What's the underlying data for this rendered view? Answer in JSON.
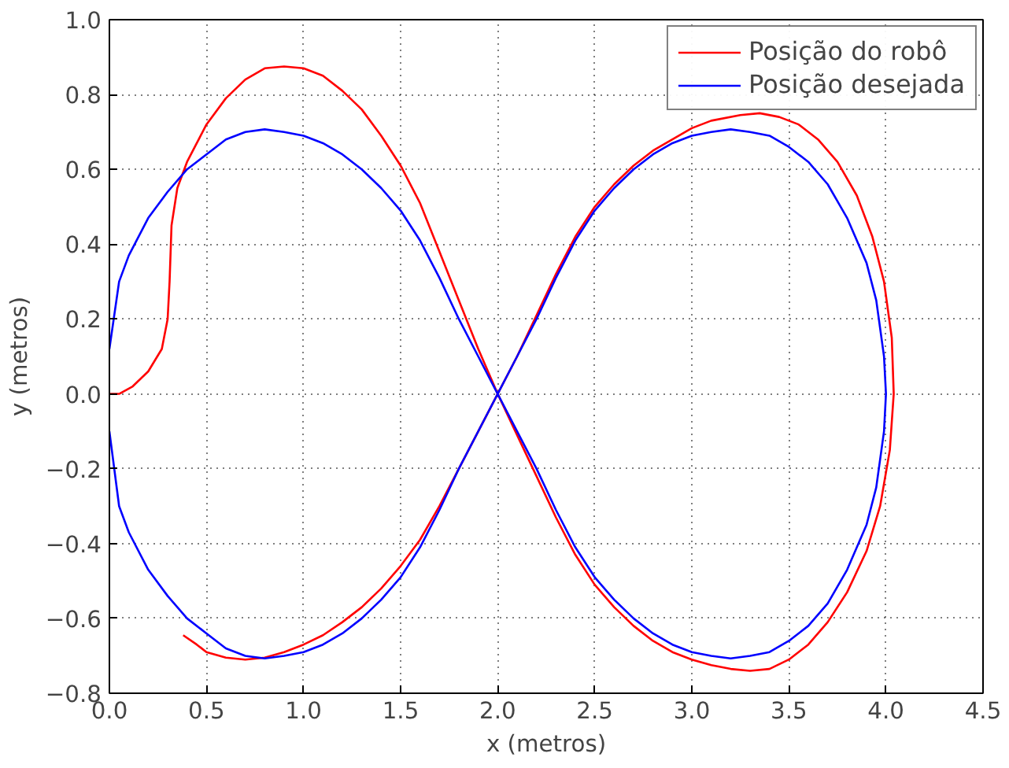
{
  "chart_data": {
    "type": "line",
    "xlabel": "x (metros)",
    "ylabel": "y (metros)",
    "xlim": [
      0,
      4.5
    ],
    "ylim": [
      -0.8,
      1.0
    ],
    "xticks": [
      {
        "value": 0,
        "label": "0.0"
      },
      {
        "value": 0.5,
        "label": "0.5"
      },
      {
        "value": 1,
        "label": "1.0"
      },
      {
        "value": 1.5,
        "label": "1.5"
      },
      {
        "value": 2,
        "label": "2.0"
      },
      {
        "value": 2.5,
        "label": "2.5"
      },
      {
        "value": 3,
        "label": "3.0"
      },
      {
        "value": 3.5,
        "label": "3.5"
      },
      {
        "value": 4,
        "label": "4.0"
      },
      {
        "value": 4.5,
        "label": "4.5"
      }
    ],
    "yticks": [
      {
        "value": -0.8,
        "label": "−0.8"
      },
      {
        "value": -0.6,
        "label": "−0.6"
      },
      {
        "value": -0.4,
        "label": "−0.4"
      },
      {
        "value": -0.2,
        "label": "−0.2"
      },
      {
        "value": 0,
        "label": "0.0"
      },
      {
        "value": 0.2,
        "label": "0.2"
      },
      {
        "value": 0.4,
        "label": "0.4"
      },
      {
        "value": 0.6,
        "label": "0.6"
      },
      {
        "value": 0.8,
        "label": "0.8"
      },
      {
        "value": 1,
        "label": "1.0"
      }
    ],
    "grid": true,
    "legend": "top right",
    "marker": "none",
    "line_style": "solid",
    "series": [
      {
        "name": "Posição do robô",
        "color": "#ff0000",
        "x": [
          0,
          0.05,
          0.12,
          0.2,
          0.27,
          0.3,
          0.31,
          0.32,
          0.35,
          0.4,
          0.5,
          0.6,
          0.7,
          0.8,
          0.9,
          1.0,
          1.1,
          1.2,
          1.3,
          1.4,
          1.5,
          1.6,
          1.7,
          1.8,
          1.9,
          2.0,
          2.1,
          2.2,
          2.3,
          2.4,
          2.5,
          2.6,
          2.7,
          2.8,
          2.9,
          3.0,
          3.1,
          3.2,
          3.3,
          3.4,
          3.5,
          3.6,
          3.7,
          3.8,
          3.9,
          3.97,
          4.02,
          4.04,
          4.03,
          3.99,
          3.93,
          3.85,
          3.75,
          3.65,
          3.55,
          3.45,
          3.35,
          3.25,
          3.1,
          3.0,
          2.9,
          2.8,
          2.7,
          2.6,
          2.5,
          2.4,
          2.3,
          2.2,
          2.1,
          1.98,
          1.9,
          1.8,
          1.7,
          1.6,
          1.5,
          1.4,
          1.3,
          1.2,
          1.1,
          1.0,
          0.9,
          0.8,
          0.7,
          0.6,
          0.5,
          0.45,
          0.38
        ],
        "values": [
          0,
          0,
          0.02,
          0.06,
          0.12,
          0.2,
          0.3,
          0.45,
          0.55,
          0.62,
          0.72,
          0.79,
          0.84,
          0.87,
          0.875,
          0.87,
          0.85,
          0.81,
          0.76,
          0.69,
          0.61,
          0.51,
          0.38,
          0.25,
          0.12,
          0.0,
          -0.11,
          -0.22,
          -0.33,
          -0.43,
          -0.51,
          -0.57,
          -0.62,
          -0.66,
          -0.69,
          -0.71,
          -0.725,
          -0.735,
          -0.74,
          -0.735,
          -0.71,
          -0.67,
          -0.61,
          -0.53,
          -0.42,
          -0.3,
          -0.15,
          0.0,
          0.15,
          0.3,
          0.42,
          0.53,
          0.62,
          0.68,
          0.72,
          0.74,
          0.75,
          0.745,
          0.73,
          0.71,
          0.68,
          0.65,
          0.61,
          0.56,
          0.5,
          0.42,
          0.32,
          0.21,
          0.1,
          -0.02,
          -0.1,
          -0.2,
          -0.3,
          -0.39,
          -0.46,
          -0.52,
          -0.57,
          -0.61,
          -0.645,
          -0.67,
          -0.69,
          -0.705,
          -0.71,
          -0.705,
          -0.69,
          -0.67,
          -0.645
        ]
      },
      {
        "name": "Posição desejada",
        "color": "#0000ff",
        "x": [
          0.0,
          0.05,
          0.1,
          0.2,
          0.3,
          0.4,
          0.5,
          0.6,
          0.7,
          0.8,
          0.9,
          1.0,
          1.1,
          1.2,
          1.3,
          1.4,
          1.5,
          1.6,
          1.7,
          1.8,
          1.9,
          2.0,
          2.1,
          2.2,
          2.3,
          2.4,
          2.5,
          2.6,
          2.7,
          2.8,
          2.9,
          3.0,
          3.1,
          3.2,
          3.3,
          3.4,
          3.5,
          3.6,
          3.7,
          3.8,
          3.9,
          3.95,
          3.99,
          4.0,
          3.99,
          3.95,
          3.9,
          3.8,
          3.7,
          3.6,
          3.5,
          3.4,
          3.3,
          3.2,
          3.1,
          3.0,
          2.9,
          2.8,
          2.7,
          2.6,
          2.5,
          2.4,
          2.3,
          2.2,
          2.1,
          2.0,
          1.9,
          1.8,
          1.7,
          1.6,
          1.5,
          1.4,
          1.3,
          1.2,
          1.1,
          1.0,
          0.9,
          0.8,
          0.7,
          0.6,
          0.5,
          0.4,
          0.3,
          0.2,
          0.1,
          0.05,
          0.0
        ],
        "values": [
          0.12,
          0.3,
          0.37,
          0.47,
          0.54,
          0.6,
          0.64,
          0.68,
          0.7,
          0.707,
          0.7,
          0.69,
          0.67,
          0.64,
          0.6,
          0.55,
          0.49,
          0.41,
          0.31,
          0.2,
          0.1,
          0.0,
          -0.1,
          -0.2,
          -0.31,
          -0.41,
          -0.49,
          -0.55,
          -0.6,
          -0.64,
          -0.67,
          -0.69,
          -0.7,
          -0.707,
          -0.7,
          -0.69,
          -0.66,
          -0.62,
          -0.56,
          -0.47,
          -0.35,
          -0.25,
          -0.1,
          0.0,
          0.1,
          0.25,
          0.35,
          0.47,
          0.56,
          0.62,
          0.66,
          0.69,
          0.7,
          0.707,
          0.7,
          0.69,
          0.67,
          0.64,
          0.6,
          0.55,
          0.49,
          0.41,
          0.31,
          0.2,
          0.1,
          0.0,
          -0.1,
          -0.2,
          -0.31,
          -0.41,
          -0.49,
          -0.55,
          -0.6,
          -0.64,
          -0.67,
          -0.69,
          -0.7,
          -0.707,
          -0.7,
          -0.68,
          -0.64,
          -0.6,
          -0.54,
          -0.47,
          -0.37,
          -0.3,
          -0.1
        ]
      }
    ]
  }
}
